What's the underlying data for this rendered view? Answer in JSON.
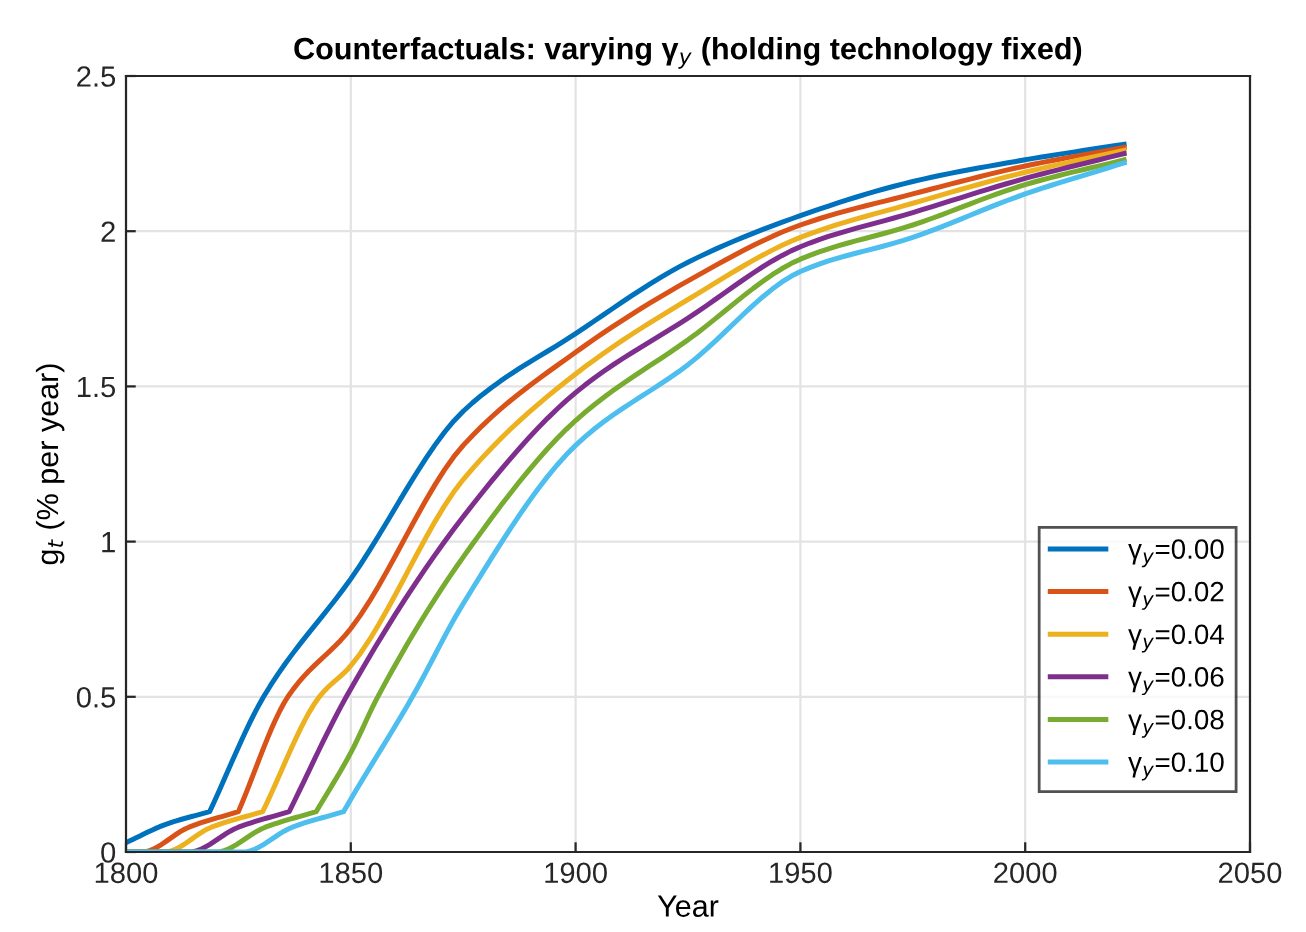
{
  "chart_data": {
    "type": "line",
    "title": "Counterfactuals: varying γ$_{y}$ (holding technology fixed)",
    "xlabel": "Year",
    "ylabel": "g$_{t}$ (% per year)",
    "series": [
      {
        "name": "γ$_{y}$=0.00",
        "color": "#0072bd",
        "x": [
          1800,
          1809,
          1818.6,
          1830.6,
          1850,
          1875,
          1900,
          1925,
          1950,
          1975,
          2000,
          2022
        ],
        "values": [
          0.03,
          0.09,
          0.13,
          0.5,
          0.88,
          1.42,
          1.67,
          1.9,
          2.05,
          2.16,
          2.23,
          2.28
        ]
      },
      {
        "name": "γ$_{y}$=0.02",
        "color": "#d95319",
        "x": [
          1800,
          1803.5,
          1814,
          1825,
          1836,
          1850,
          1875,
          1900,
          1925,
          1950,
          1975,
          2000,
          2022
        ],
        "values": [
          0,
          0,
          0.08,
          0.13,
          0.5,
          0.72,
          1.31,
          1.61,
          1.84,
          2.02,
          2.12,
          2.21,
          2.27
        ]
      },
      {
        "name": "γ$_{y}$=0.04",
        "color": "#edb120",
        "x": [
          1800,
          1808.5,
          1819,
          1830.4,
          1843,
          1850,
          1875,
          1900,
          1925,
          1950,
          1975,
          2000,
          2022
        ],
        "values": [
          0,
          0,
          0.08,
          0.13,
          0.5,
          0.6,
          1.2,
          1.54,
          1.78,
          1.98,
          2.09,
          2.19,
          2.26
        ]
      },
      {
        "name": "γ$_{y}$=0.06",
        "color": "#7e2f8e",
        "x": [
          1800,
          1814,
          1825,
          1836.3,
          1849,
          1875,
          1900,
          1925,
          1950,
          1975,
          2000,
          2022
        ],
        "values": [
          0,
          0,
          0.08,
          0.13,
          0.5,
          1.08,
          1.48,
          1.72,
          1.95,
          2.06,
          2.17,
          2.25
        ]
      },
      {
        "name": "γ$_{y}$=0.08",
        "color": "#77ac30",
        "x": [
          1800,
          1820,
          1831,
          1842.3,
          1850,
          1856,
          1875,
          1900,
          1925,
          1950,
          1975,
          2000,
          2022
        ],
        "values": [
          0,
          0,
          0.08,
          0.13,
          0.32,
          0.5,
          0.95,
          1.39,
          1.65,
          1.91,
          2.02,
          2.15,
          2.23
        ]
      },
      {
        "name": "γ$_{y}$=0.10",
        "color": "#4dbeee",
        "x": [
          1800,
          1826,
          1837,
          1848.4,
          1850,
          1863.7,
          1875,
          1900,
          1925,
          1950,
          1975,
          2000,
          2022
        ],
        "values": [
          0,
          0,
          0.08,
          0.13,
          0.17,
          0.5,
          0.8,
          1.31,
          1.57,
          1.87,
          1.98,
          2.12,
          2.22
        ]
      }
    ],
    "xlim": [
      1800,
      2050
    ],
    "xticks": [
      1800,
      1850,
      1900,
      1950,
      2000,
      2050
    ],
    "ylim": [
      0,
      2.5
    ],
    "yticks": [
      0,
      0.5,
      1,
      1.5,
      2,
      2.5
    ],
    "grid": true,
    "legend": "bottom right",
    "line_style": "solid",
    "marker": "none"
  }
}
